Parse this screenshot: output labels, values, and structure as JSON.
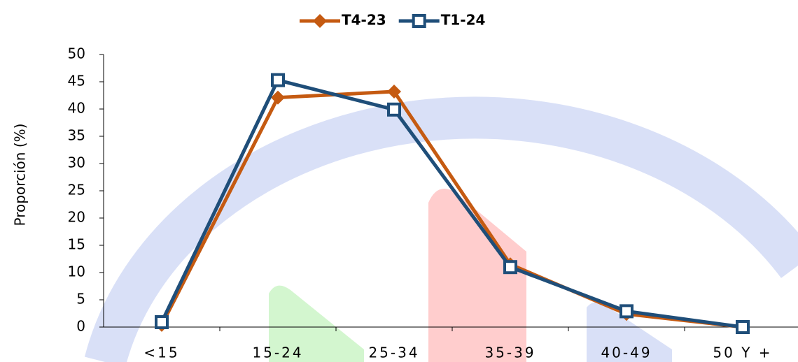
{
  "chart_data": {
    "type": "line",
    "y_label": "Proporción (%)",
    "categories": [
      "<15",
      "15-24",
      "25-34",
      "35-39",
      "40-49",
      "50 Y +"
    ],
    "series": [
      {
        "name": "T4-23",
        "color": "#c55a11",
        "marker": "diamond",
        "values": [
          0.4,
          42.1,
          43.2,
          11.5,
          2.4,
          0
        ]
      },
      {
        "name": "T1-24",
        "color": "#1f4e79",
        "marker": "square",
        "values": [
          0.9,
          45.3,
          39.9,
          11.0,
          2.9,
          0
        ]
      }
    ],
    "ylim": [
      0,
      50
    ],
    "yticks": [
      0,
      5,
      10,
      15,
      20,
      25,
      30,
      35,
      40,
      45,
      50
    ],
    "grid": false
  }
}
